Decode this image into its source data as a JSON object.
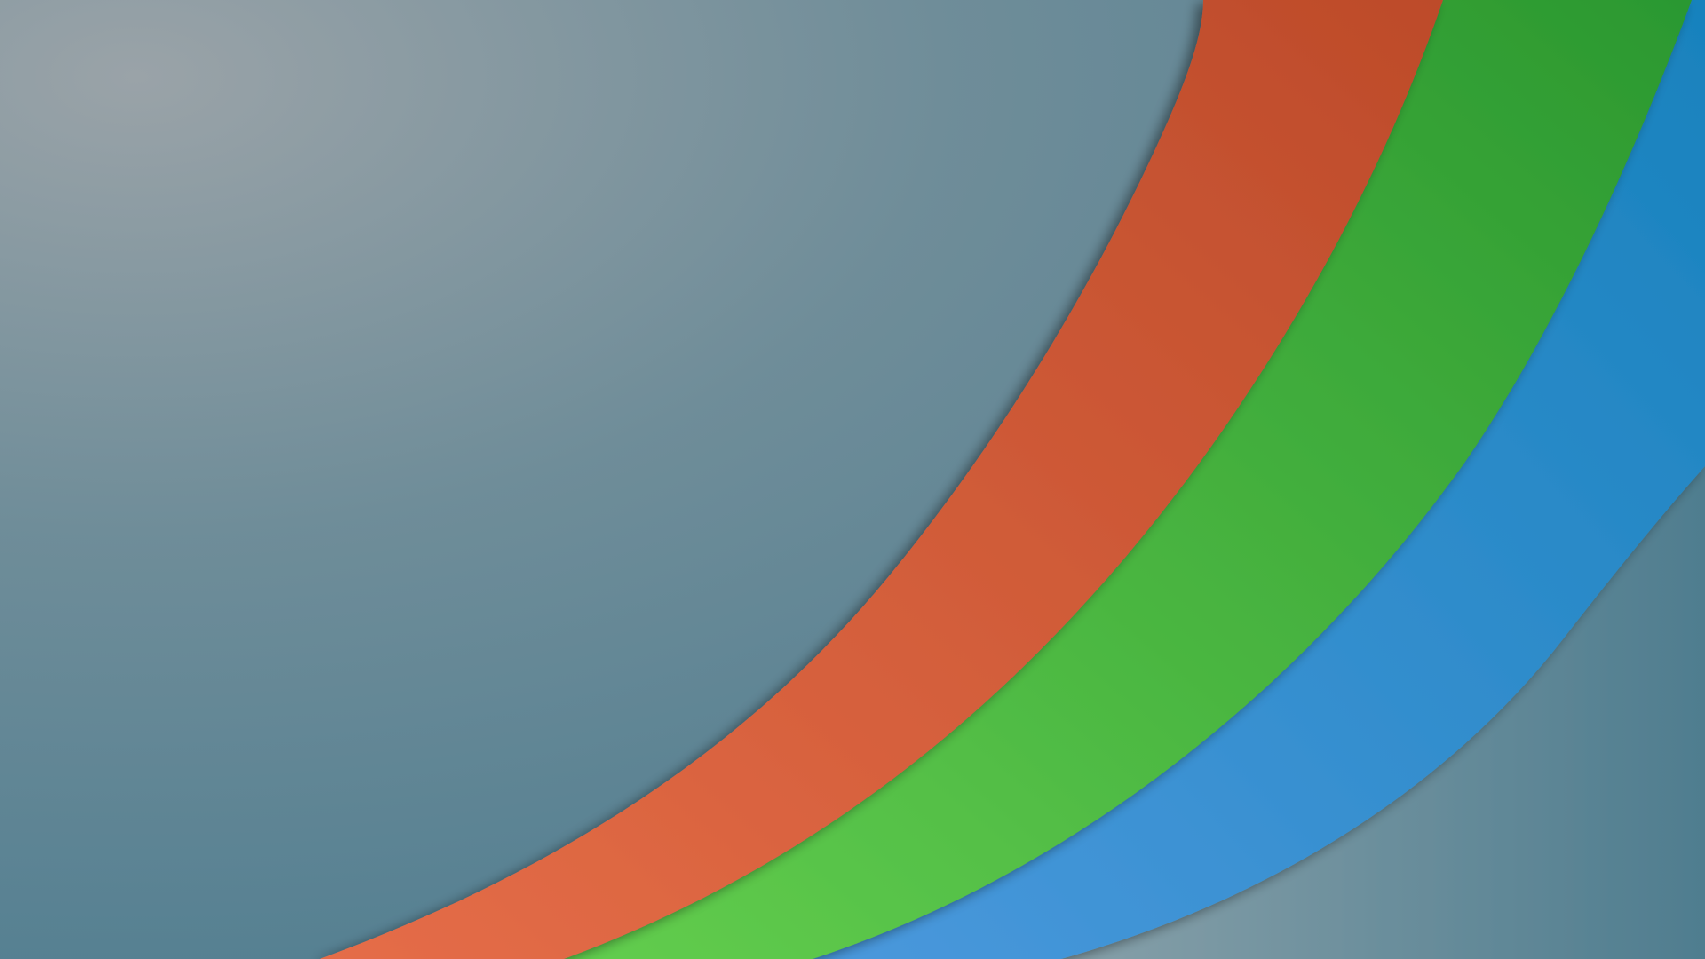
{
  "wallpaper": {
    "description_visible_text": "",
    "background": {
      "highlight": "#9aa3a8",
      "mid": "#6f8d99",
      "base": "#4f7d90"
    },
    "bands": [
      {
        "name": "orange-band",
        "color_light": "#e56d48",
        "color_dark": "#bd4b2a"
      },
      {
        "name": "green-band",
        "color_light": "#62cd4e",
        "color_dark": "#2b9830"
      },
      {
        "name": "blue-band",
        "color_light": "#4a98dc",
        "color_dark": "#1882bd"
      },
      {
        "name": "gray-band",
        "color_light": "#87a0a9",
        "color_dark": "#4f7d8f"
      }
    ]
  }
}
